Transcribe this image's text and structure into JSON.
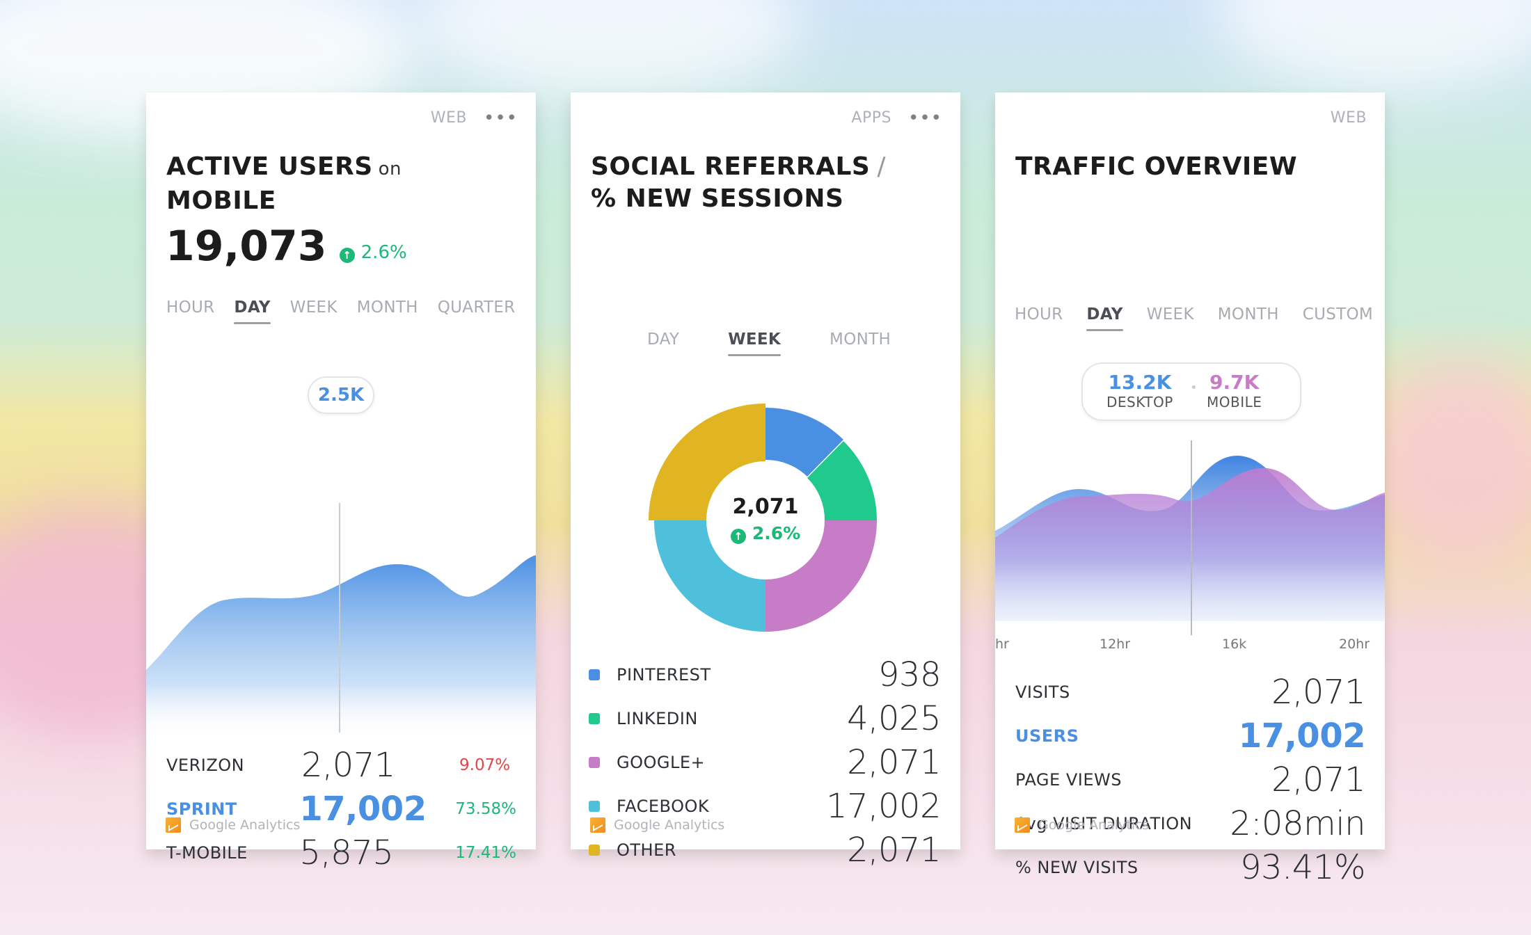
{
  "card1": {
    "tag": "WEB",
    "menu_icon": "more-dots-icon",
    "title_main": "ACTIVE USERS",
    "title_sub": "on",
    "title_line2": "MOBILE",
    "big_value": "19,073",
    "change": "2.6%",
    "tabs": [
      "HOUR",
      "DAY",
      "WEEK",
      "MONTH",
      "QUARTER"
    ],
    "active_tab": "DAY",
    "tooltip": "2.5K",
    "rows": [
      {
        "label": "VERIZON",
        "value": "2,071",
        "pct": "9.07%"
      },
      {
        "label": "SPRINT",
        "value": "17,002",
        "pct": "73.58%"
      },
      {
        "label": "T-MOBILE",
        "value": "5,875",
        "pct": "17.41%"
      }
    ],
    "footer": "Google Analytics"
  },
  "card2": {
    "tag": "APPS",
    "menu_icon": "more-dots-icon",
    "title_line1": "SOCIAL REFERRALS",
    "title_slash": "/",
    "title_line2": "% NEW SESSIONS",
    "tabs": [
      "DAY",
      "WEEK",
      "MONTH"
    ],
    "active_tab": "WEEK",
    "center_value": "2,071",
    "center_change": "2.6%",
    "legend": [
      {
        "label": "PINTEREST",
        "value": "938",
        "color": "#4a90e2"
      },
      {
        "label": "LINKEDIN",
        "value": "4,025",
        "color": "#20c98c"
      },
      {
        "label": "GOOGLE+",
        "value": "2,071",
        "color": "#c77cc8"
      },
      {
        "label": "FACEBOOK",
        "value": "17,002",
        "color": "#4fc0dc"
      },
      {
        "label": "OTHER",
        "value": "2,071",
        "color": "#e1b521"
      }
    ],
    "footer": "Google Analytics"
  },
  "card3": {
    "tag": "WEB",
    "title": "TRAFFIC OVERVIEW",
    "tabs": [
      "HOUR",
      "DAY",
      "WEEK",
      "MONTH",
      "CUSTOM"
    ],
    "active_tab": "DAY",
    "tooltip": {
      "desktop_value": "13.2K",
      "desktop_label": "DESKTOP",
      "mobile_value": "9.7K",
      "mobile_label": "MOBILE"
    },
    "x_ticks": [
      "hr",
      "12hr",
      "16k",
      "20hr"
    ],
    "rows": [
      {
        "label": "VISITS",
        "value": "2,071"
      },
      {
        "label": "USERS",
        "value": "17,002"
      },
      {
        "label": "PAGE VIEWS",
        "value": "2,071"
      },
      {
        "label": "Avg VISIT DURATION",
        "value": "2:08min"
      },
      {
        "label": "% NEW VISITS",
        "value": "93.41%"
      }
    ],
    "footer": "Google Analytics"
  },
  "colors": {
    "blue": "#4a90e2",
    "green": "#1bb877",
    "red": "#e0474c",
    "purple": "#c77cc8",
    "desktop": "#4a90e2",
    "mobile": "#c77cc8"
  }
}
